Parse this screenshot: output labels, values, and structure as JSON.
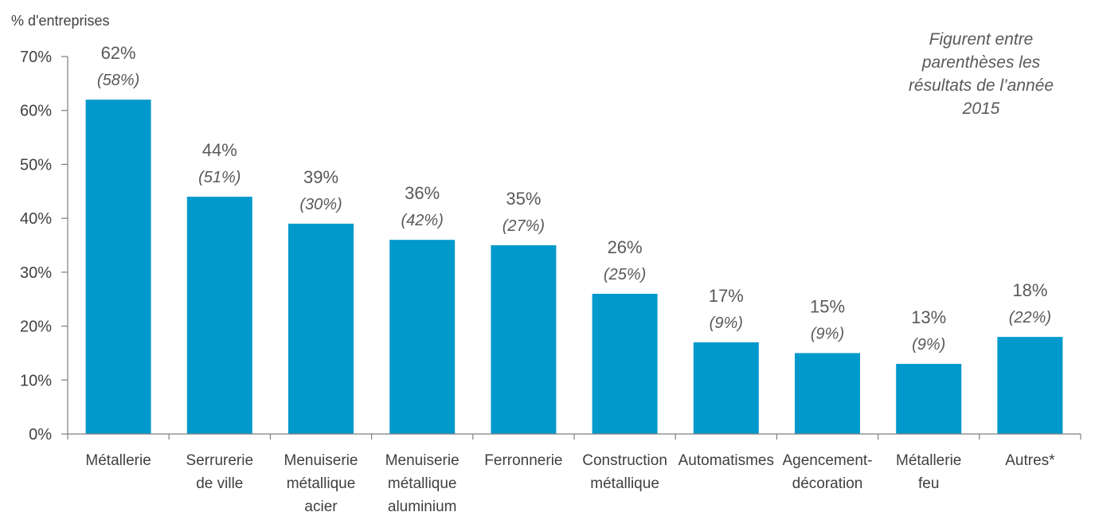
{
  "chart_data": {
    "type": "bar",
    "ylabel": "% d'entreprises",
    "ylim": [
      0,
      70
    ],
    "yticks": [
      "0%",
      "10%",
      "20%",
      "30%",
      "40%",
      "50%",
      "60%",
      "70%"
    ],
    "categories": [
      [
        "Métallerie"
      ],
      [
        "Serrurerie",
        "de ville"
      ],
      [
        "Menuiserie",
        "métallique",
        "acier"
      ],
      [
        "Menuiserie",
        "métallique",
        "aluminium"
      ],
      [
        "Ferronnerie"
      ],
      [
        "Construction",
        "métallique"
      ],
      [
        "Automatismes"
      ],
      [
        "Agencement-",
        "décoration"
      ],
      [
        "Métallerie",
        "feu"
      ],
      [
        "Autres*"
      ]
    ],
    "values": [
      62,
      44,
      39,
      36,
      35,
      26,
      17,
      15,
      13,
      18
    ],
    "value_labels": [
      "62%",
      "44%",
      "39%",
      "36%",
      "35%",
      "26%",
      "17%",
      "15%",
      "13%",
      "18%"
    ],
    "previous_labels": [
      "(58%)",
      "(51%)",
      "(30%)",
      "(42%)",
      "(27%)",
      "(25%)",
      "(9%)",
      "(9%)",
      "(9%)",
      "(22%)"
    ],
    "note": [
      "Figurent entre",
      "parenthèses les",
      "résultats de l’année",
      "2015"
    ],
    "bar_color": "#0099CC",
    "axis_color": "#7F7F7F",
    "grid": false
  }
}
